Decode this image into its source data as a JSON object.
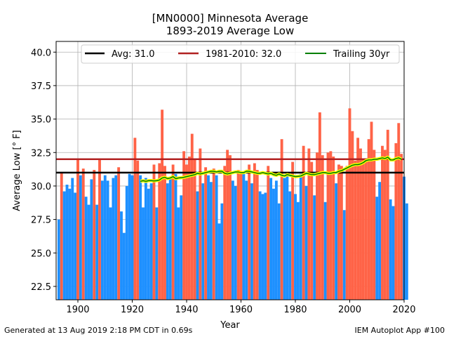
{
  "chart_data": {
    "type": "bar",
    "title_line1": "[MN0000] Minnesota Average",
    "title_line2": "1893-2019 Average Low",
    "xlabel": "Year",
    "ylabel": "Average Low [° F]",
    "xlim": [
      1892,
      2020
    ],
    "ylim": [
      21.5,
      40.8
    ],
    "xticks": [
      1900,
      1920,
      1940,
      1960,
      1980,
      2000,
      2020
    ],
    "yticks": [
      22.5,
      25.0,
      27.5,
      30.0,
      32.5,
      35.0,
      37.5,
      40.0
    ],
    "grid": true,
    "legend_position": "top",
    "avg": 31.0,
    "climate_normal": 32.0,
    "legend": {
      "avg_label": "Avg: 31.0",
      "normal_label": "1981-2010: 32.0",
      "trailing_label": "Trailing 30yr"
    },
    "colors": {
      "above": "#ff6347",
      "below": "#1e90ff",
      "avg_line": "#000000",
      "normal_line": "#b22222",
      "trailing_line": "#008000",
      "trailing_glow": "#ffff00"
    },
    "start_year": 1893,
    "values": [
      27.5,
      31.0,
      29.6,
      30.1,
      29.8,
      30.6,
      29.5,
      32.0,
      30.8,
      31.3,
      29.2,
      28.6,
      30.5,
      31.2,
      28.6,
      32.0,
      30.4,
      30.8,
      30.4,
      28.4,
      30.6,
      30.8,
      31.4,
      28.1,
      26.5,
      30.0,
      30.9,
      30.8,
      33.6,
      31.9,
      30.8,
      28.4,
      30.6,
      29.8,
      30.2,
      31.6,
      28.4,
      31.7,
      35.7,
      31.5,
      30.2,
      30.7,
      31.6,
      30.9,
      28.4,
      29.3,
      32.6,
      31.6,
      32.2,
      33.9,
      32.0,
      29.6,
      32.8,
      30.2,
      31.4,
      30.8,
      30.3,
      31.3,
      30.8,
      27.2,
      28.7,
      31.5,
      32.7,
      32.3,
      30.4,
      30.0,
      31.2,
      31.1,
      30.9,
      30.4,
      31.6,
      30.2,
      31.7,
      31.2,
      29.6,
      29.4,
      29.5,
      31.5,
      30.6,
      29.8,
      30.4,
      28.7,
      33.5,
      30.6,
      30.8,
      29.6,
      31.8,
      29.4,
      28.8,
      30.9,
      33.0,
      30.0,
      32.8,
      31.8,
      29.3,
      32.5,
      35.5,
      32.3,
      28.8,
      32.5,
      32.6,
      32.2,
      30.2,
      31.6,
      31.5,
      28.2,
      31.5,
      35.8,
      34.1,
      31.9,
      33.6,
      32.8,
      32.0,
      32.0,
      33.5,
      34.8,
      32.7,
      29.2,
      30.3,
      33.0,
      32.7,
      34.2,
      29.0,
      28.5,
      33.2,
      34.7,
      32.4,
      30.7,
      28.7
    ],
    "trailing_30yr": {
      "start_year": 1923,
      "values": [
        30.35,
        30.4,
        30.35,
        30.4,
        30.4,
        30.38,
        30.4,
        30.45,
        30.6,
        30.65,
        30.55,
        30.6,
        30.7,
        30.55,
        30.6,
        30.62,
        30.65,
        30.7,
        30.75,
        30.8,
        30.85,
        30.95,
        30.9,
        30.95,
        31.0,
        31.05,
        31.1,
        31.1,
        31.05,
        31.1,
        31.1,
        30.95,
        30.9,
        30.95,
        31.0,
        31.05,
        31.05,
        31.0,
        31.0,
        31.1,
        31.1,
        31.05,
        31.0,
        30.95,
        30.95,
        31.0,
        30.95,
        30.9,
        30.95,
        30.85,
        30.8,
        30.9,
        30.8,
        30.75,
        30.85,
        30.8,
        30.75,
        30.7,
        30.72,
        30.75,
        30.85,
        30.95,
        30.9,
        30.85,
        30.85,
        30.9,
        30.95,
        31.0,
        31.0,
        30.95,
        30.95,
        31.0,
        31.0,
        31.1,
        31.15,
        31.25,
        31.35,
        31.45,
        31.55,
        31.6,
        31.6,
        31.65,
        31.75,
        31.9,
        31.95,
        31.95,
        32.0,
        32.0,
        32.05,
        32.1,
        32.05,
        32.15,
        31.95,
        31.95,
        32.05,
        32.1,
        32.0
      ]
    }
  },
  "footer": {
    "left": "Generated at 13 Aug 2019 2:18 PM CDT in 0.69s",
    "right": "IEM Autoplot App #100"
  }
}
